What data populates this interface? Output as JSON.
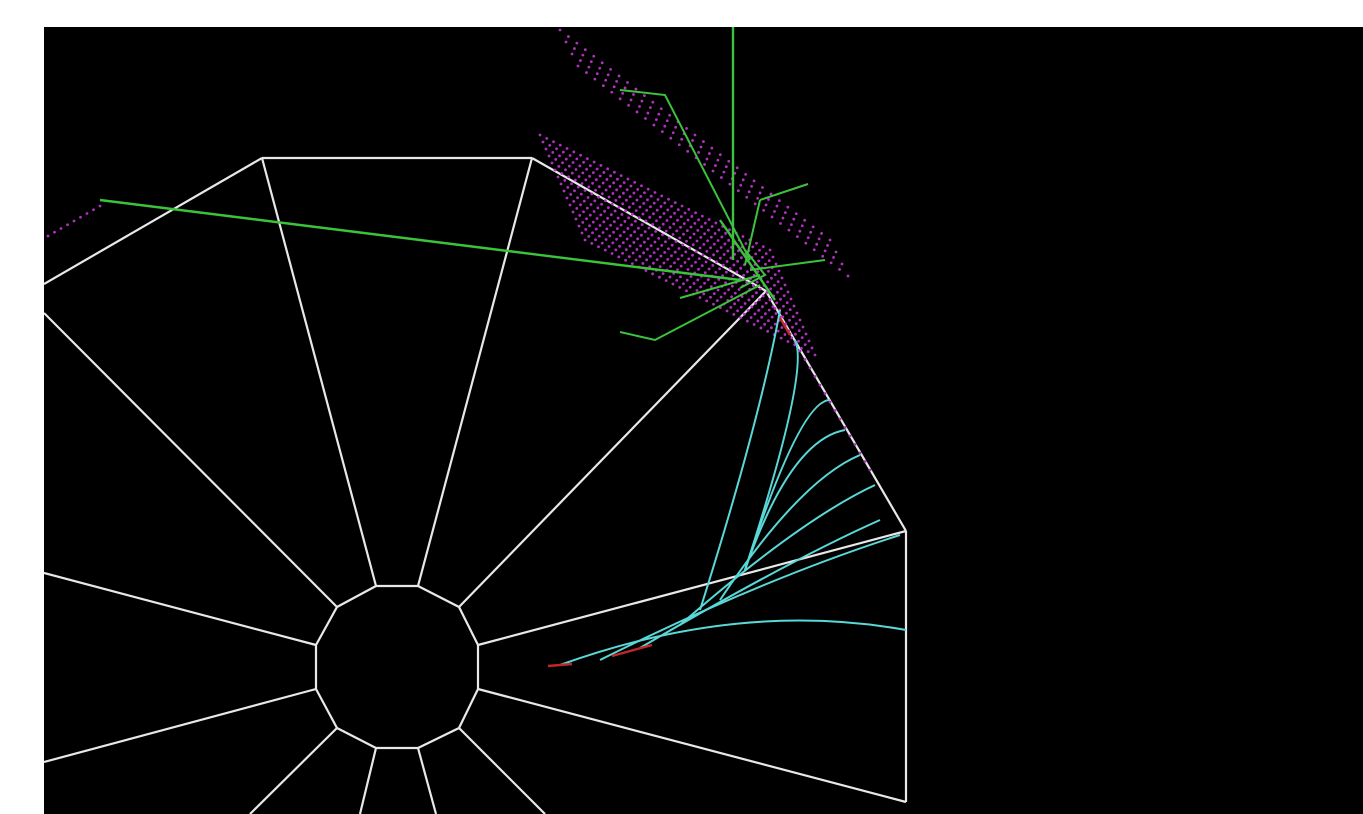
{
  "view": {
    "background_color": "#000000",
    "page_color": "#ffffff"
  },
  "detector": {
    "outline_color": "#e8e8e8",
    "outer_ring_shape": "dodecagon",
    "inner_ring_shape": "dodecagon"
  },
  "hits": {
    "color": "#b030c0"
  },
  "tracks": {
    "shower_color": "#3cc23c",
    "curl_color": "#5ad8d8",
    "seed_color": "#c02828"
  }
}
